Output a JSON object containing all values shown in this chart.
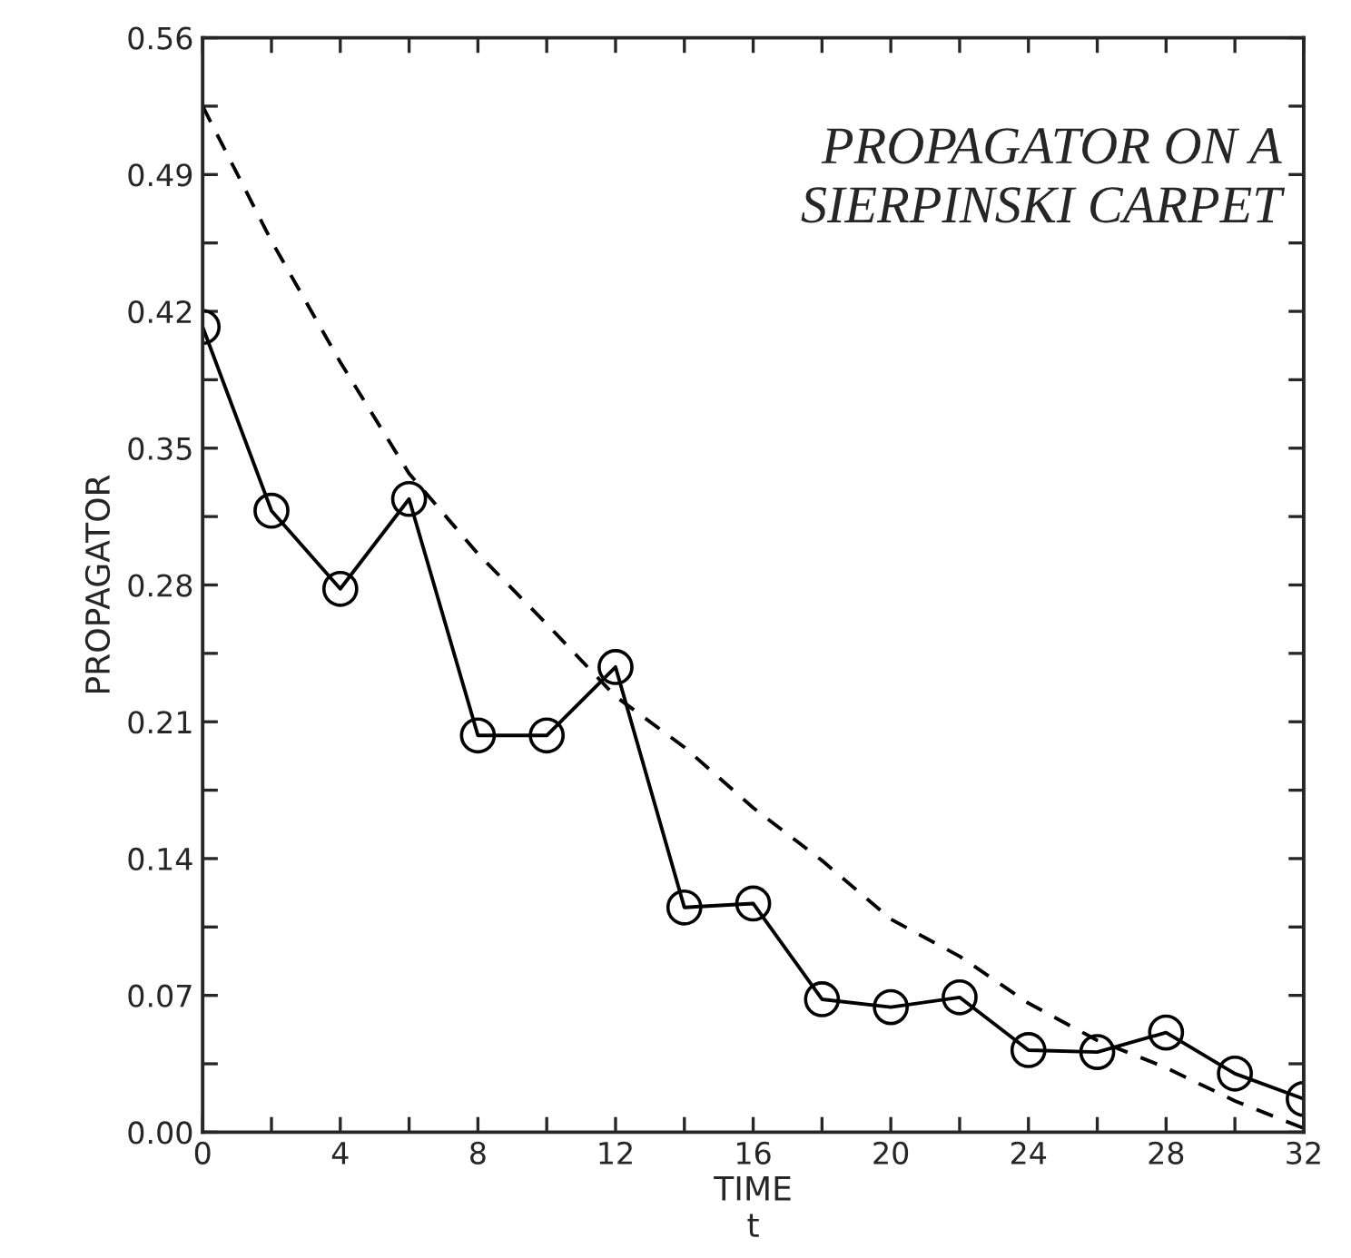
{
  "chart_data": {
    "type": "line",
    "xlabel": "TIME\nt",
    "ylabel": "PROPAGATOR",
    "annotations": [
      "PROPAGATOR ON A\nSIERPINSKI CARPET"
    ],
    "series": [
      {
        "color": "#000000",
        "marker": "circle",
        "line_style": "solid",
        "x": [
          0,
          2,
          4,
          6,
          8,
          10,
          12,
          14,
          16,
          18,
          20,
          22,
          24,
          26,
          28,
          30,
          32
        ],
        "values": [
          0.412,
          0.318,
          0.278,
          0.324,
          0.203,
          0.203,
          0.238,
          0.115,
          0.117,
          0.068,
          0.064,
          0.069,
          0.042,
          0.041,
          0.051,
          0.03,
          0.017
        ]
      },
      {
        "color": "#000000",
        "marker": "none",
        "line_style": "dashed",
        "x": [
          0,
          2,
          4,
          6,
          8,
          10,
          12,
          14,
          16,
          18,
          20,
          22,
          24,
          26,
          28,
          30,
          32
        ],
        "values": [
          0.525,
          0.456,
          0.394,
          0.337,
          0.296,
          0.26,
          0.223,
          0.197,
          0.166,
          0.139,
          0.109,
          0.09,
          0.066,
          0.047,
          0.033,
          0.016,
          0.002
        ]
      }
    ],
    "xlim": [
      0,
      32
    ],
    "ylim": [
      0,
      0.56
    ],
    "xticks": [
      0,
      {
        "value": 2,
        "label": null
      },
      4,
      {
        "value": 6,
        "label": null
      },
      8,
      {
        "value": 10,
        "label": null
      },
      12,
      {
        "value": 14,
        "label": null
      },
      16,
      {
        "value": 18,
        "label": null
      },
      20,
      {
        "value": 22,
        "label": null
      },
      24,
      {
        "value": 26,
        "label": null
      },
      28,
      {
        "value": 30,
        "label": null
      },
      32
    ],
    "yticks": [
      {
        "value": 0,
        "label": "0.00"
      },
      {
        "value": 0.035,
        "label": null
      },
      {
        "value": 0.07,
        "label": "0.07"
      },
      {
        "value": 0.105,
        "label": null
      },
      {
        "value": 0.14,
        "label": "0.14"
      },
      {
        "value": 0.175,
        "label": null
      },
      {
        "value": 0.21,
        "label": "0.21"
      },
      {
        "value": 0.245,
        "label": null
      },
      {
        "value": 0.28,
        "label": "0.28"
      },
      {
        "value": 0.315,
        "label": null
      },
      {
        "value": 0.35,
        "label": "0.35"
      },
      {
        "value": 0.385,
        "label": null
      },
      {
        "value": 0.42,
        "label": "0.42"
      },
      {
        "value": 0.455,
        "label": null
      },
      {
        "value": 0.49,
        "label": "0.49"
      },
      {
        "value": 0.525,
        "label": null
      },
      {
        "value": 0.56,
        "label": "0.56"
      }
    ],
    "grid": false,
    "legend": false
  }
}
